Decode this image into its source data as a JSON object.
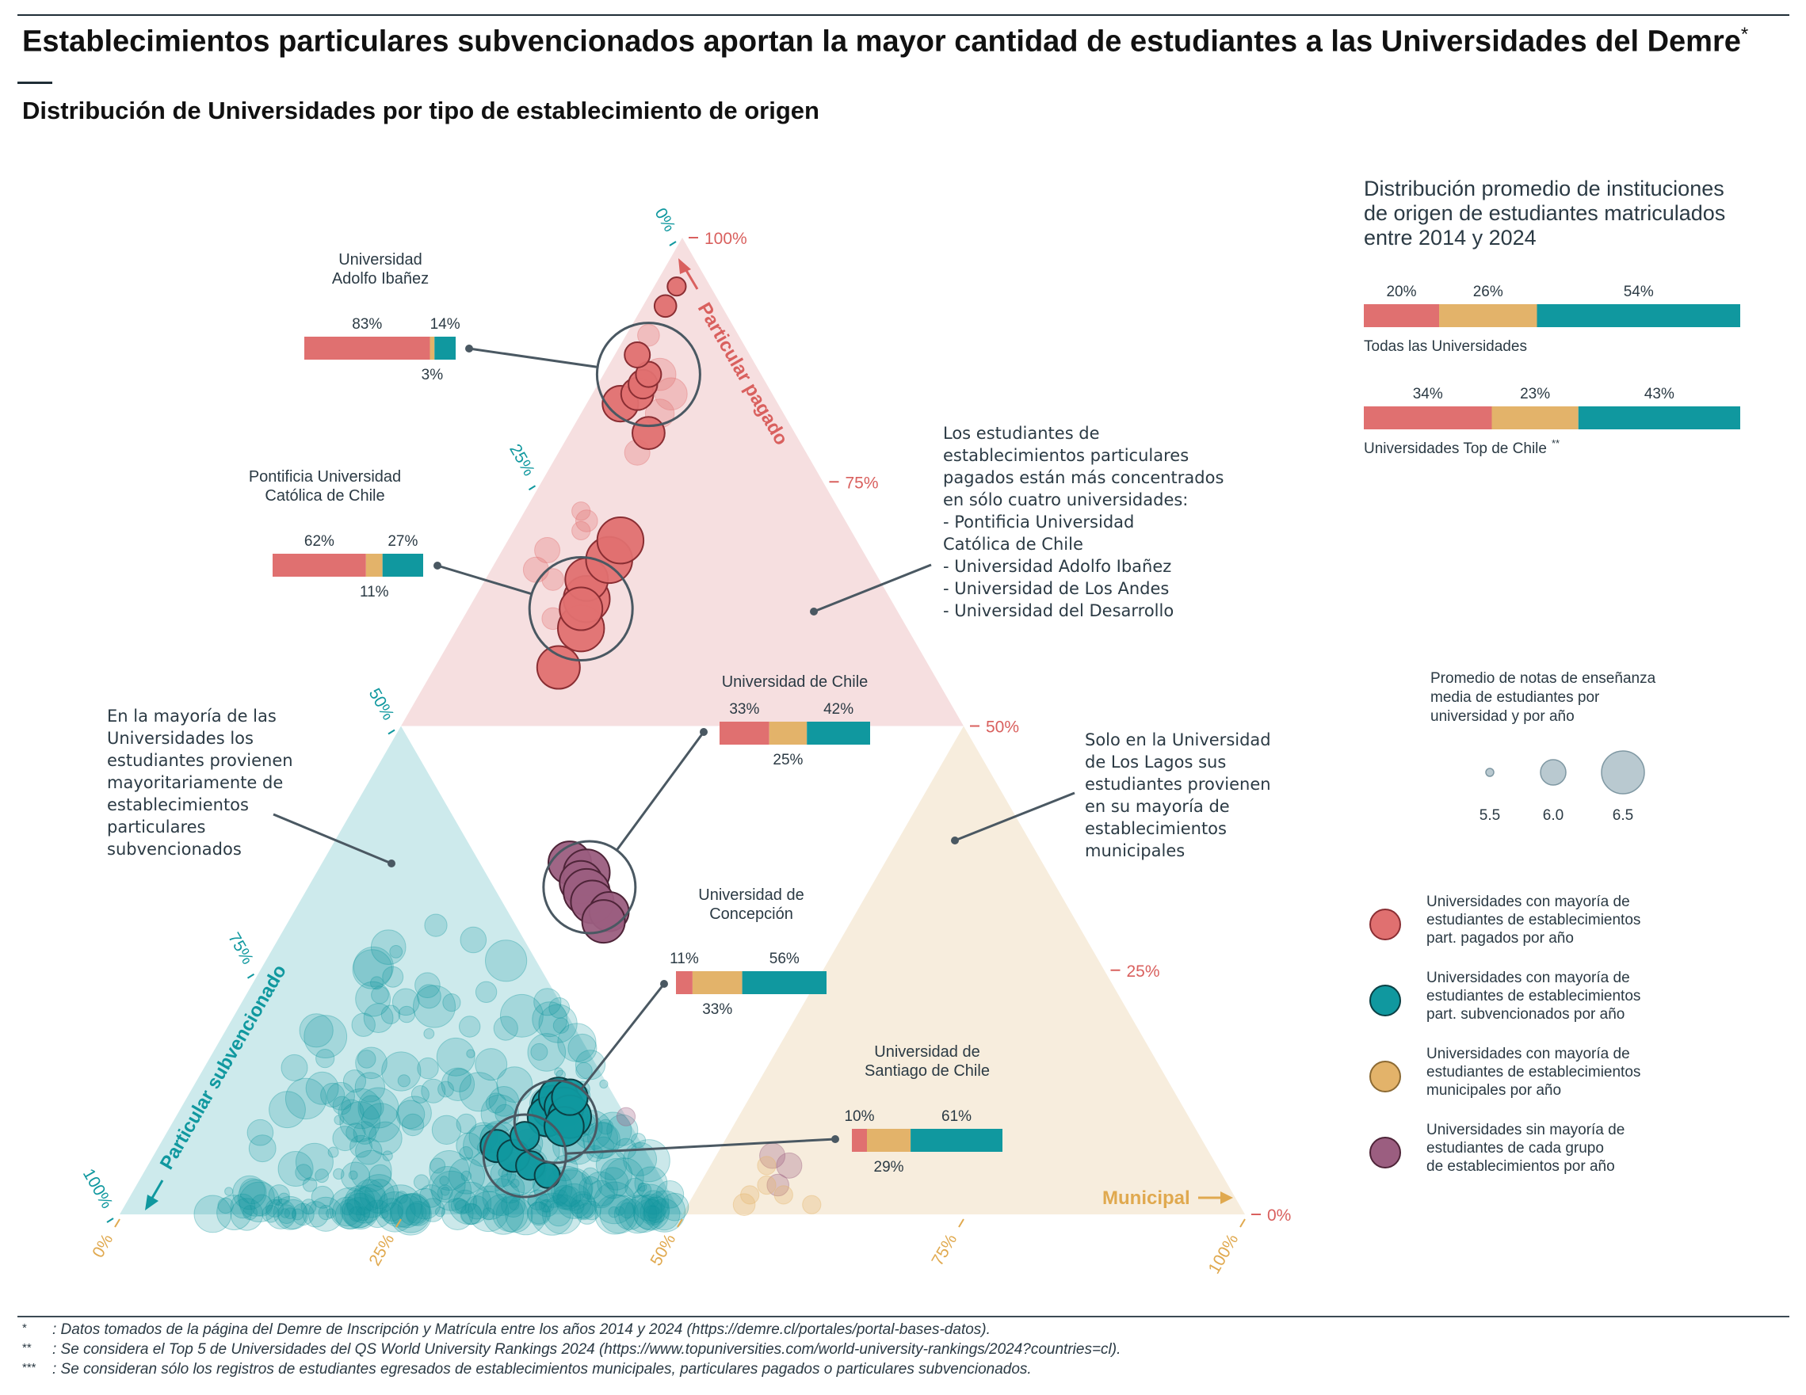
{
  "title": "Establecimientos particulares subvencionados aportan la mayor cantidad de estudiantes a las Universidades del Demre",
  "title_mark": "*",
  "subtitle": "Distribución de Universidades por tipo de establecimiento de origen",
  "colors": {
    "pagado": "#e07070",
    "subvencionado": "#10989f",
    "municipal": "#e3b36a",
    "sin_mayoria": "#9b5e80",
    "region_pagado": "#f6dfe0",
    "region_subvencionado": "#cdeaec",
    "region_municipal": "#f7eddd",
    "axis_pagado": "#d9605e",
    "axis_subvencionado": "#10989f",
    "axis_municipal": "#e0a94f",
    "text": "#2b3a44"
  },
  "axes": {
    "pagado": {
      "title": "Particular pagado",
      "ticks": [
        "100%",
        "75%",
        "50%",
        "25%",
        "0%"
      ]
    },
    "subvencionado": {
      "title": "Particular subvencionado",
      "ticks": [
        "0%",
        "25%",
        "50%",
        "75%",
        "100%"
      ]
    },
    "municipal": {
      "title": "Municipal",
      "ticks": [
        "0%",
        "25%",
        "50%",
        "75%",
        "100%"
      ]
    }
  },
  "annotations": [
    {
      "id": "a1",
      "lines": [
        "Los estudiantes de",
        "establecimientos particulares",
        "pagados están más concentrados",
        "en sólo cuatro universidades:",
        " - Pontificia Universidad",
        "   Católica de Chile",
        " - Universidad Adolfo Ibañez",
        " - Universidad de Los Andes",
        " - Universidad del Desarrollo"
      ]
    },
    {
      "id": "a2",
      "lines": [
        "En la mayoría de las",
        "Universidades los",
        "estudiantes provienen",
        "mayoritariamente de",
        "establecimientos",
        "particulares",
        "subvencionados"
      ]
    },
    {
      "id": "a3",
      "lines": [
        "Solo en la Universidad",
        "de Los Lagos sus",
        "estudiantes provienen",
        "en su mayoría de",
        "establecimientos",
        "municipales"
      ]
    }
  ],
  "callouts": [
    {
      "name": [
        "Universidad",
        "Adolfo Ibañez"
      ],
      "pagado": 83,
      "municipal": 3,
      "subvencionado": 14,
      "labels": [
        "83%",
        "14%",
        "3%"
      ]
    },
    {
      "name": [
        "Pontificia Universidad",
        "Católica de Chile"
      ],
      "pagado": 62,
      "municipal": 11,
      "subvencionado": 27,
      "labels": [
        "62%",
        "27%",
        "11%"
      ]
    },
    {
      "name": [
        "Universidad de Chile"
      ],
      "pagado": 33,
      "municipal": 25,
      "subvencionado": 42,
      "labels": [
        "33%",
        "42%",
        "25%"
      ]
    },
    {
      "name": [
        "Universidad de",
        "Concepción"
      ],
      "pagado": 11,
      "municipal": 33,
      "subvencionado": 56,
      "labels": [
        "11%",
        "56%",
        "33%"
      ]
    },
    {
      "name": [
        "Universidad de",
        "Santiago de Chile"
      ],
      "pagado": 10,
      "municipal": 29,
      "subvencionado": 61,
      "labels": [
        "10%",
        "61%",
        "29%"
      ]
    }
  ],
  "summary": {
    "title": [
      "Distribución promedio de instituciones",
      "de origen de estudiantes matriculados",
      "entre 2014 y 2024"
    ],
    "bars": [
      {
        "label": "Todas las Universidades",
        "mark": "",
        "pagado": 20,
        "municipal": 26,
        "subvencionado": 54,
        "labels": [
          "20%",
          "26%",
          "54%"
        ]
      },
      {
        "label": "Universidades Top de Chile",
        "mark": "**",
        "pagado": 34,
        "municipal": 23,
        "subvencionado": 43,
        "labels": [
          "34%",
          "23%",
          "43%"
        ]
      }
    ]
  },
  "size_legend": {
    "title": [
      "Promedio de notas de enseñanza",
      "media de estudiantes por",
      "universidad y por año"
    ],
    "values": [
      5.5,
      6.0,
      6.5
    ],
    "labels": [
      "5.5",
      "6.0",
      "6.5"
    ]
  },
  "color_legend": [
    {
      "key": "pagado",
      "lines": [
        "Universidades con mayoría de",
        "estudiantes de establecimientos",
        "part. pagados por año"
      ]
    },
    {
      "key": "subvencionado",
      "lines": [
        "Universidades con mayoría de",
        "estudiantes de establecimientos",
        "part. subvencionados por año"
      ]
    },
    {
      "key": "municipal",
      "lines": [
        "Universidades con mayoría de",
        "estudiantes de establecimientos",
        "municipales por año"
      ]
    },
    {
      "key": "sin_mayoria",
      "lines": [
        "Universidades sin mayoría de",
        "estudiantes de cada grupo",
        "de establecimientos por año"
      ]
    }
  ],
  "footnotes": [
    {
      "mark": "*",
      "text": ": Datos tomados de la página del Demre de Inscripción y Matrícula entre los años 2014 y 2024 (https://demre.cl/portales/portal-bases-datos)."
    },
    {
      "mark": "**",
      "text": ": Se considera el Top 5 de Universidades del QS World University Rankings 2024 (https://www.topuniversities.com/world-university-rankings/2024?countries=cl)."
    },
    {
      "mark": "***",
      "text": ": Se consideran sólo los registros de estudiantes egresados de establecimientos municipales, particulares pagados o particulares subvencionados."
    }
  ],
  "chart_data": {
    "type": "scatter",
    "subtype": "ternary",
    "components": [
      "pagado",
      "subvencionado",
      "municipal"
    ],
    "highlight_points": [
      {
        "group": "pagado",
        "pagado": 0.8,
        "subvencionado": 0.13,
        "municipal": 0.07,
        "size": 6.2
      },
      {
        "group": "pagado",
        "pagado": 0.83,
        "subvencionado": 0.14,
        "municipal": 0.03,
        "size": 6.3
      },
      {
        "group": "pagado",
        "pagado": 0.84,
        "subvencionado": 0.12,
        "municipal": 0.04,
        "size": 6.2
      },
      {
        "group": "pagado",
        "pagado": 0.85,
        "subvencionado": 0.11,
        "municipal": 0.04,
        "size": 6.1
      },
      {
        "group": "pagado",
        "pagado": 0.86,
        "subvencionado": 0.1,
        "municipal": 0.04,
        "size": 6.0
      },
      {
        "group": "pagado",
        "pagado": 0.88,
        "subvencionado": 0.1,
        "municipal": 0.02,
        "size": 6.0
      },
      {
        "group": "pagado",
        "pagado": 0.93,
        "subvencionado": 0.05,
        "municipal": 0.02,
        "size": 5.9
      },
      {
        "group": "pagado",
        "pagado": 0.95,
        "subvencionado": 0.03,
        "municipal": 0.02,
        "size": 5.8
      },
      {
        "group": "pagado",
        "pagado": 0.56,
        "subvencionado": 0.33,
        "municipal": 0.11,
        "size": 6.5
      },
      {
        "group": "pagado",
        "pagado": 0.6,
        "subvencionado": 0.29,
        "municipal": 0.11,
        "size": 6.6
      },
      {
        "group": "pagado",
        "pagado": 0.63,
        "subvencionado": 0.27,
        "municipal": 0.1,
        "size": 6.6
      },
      {
        "group": "pagado",
        "pagado": 0.65,
        "subvencionado": 0.26,
        "municipal": 0.09,
        "size": 6.5
      },
      {
        "group": "pagado",
        "pagado": 0.67,
        "subvencionado": 0.23,
        "municipal": 0.1,
        "size": 6.6
      },
      {
        "group": "pagado",
        "pagado": 0.69,
        "subvencionado": 0.21,
        "municipal": 0.1,
        "size": 6.6
      },
      {
        "group": "pagado",
        "pagado": 0.62,
        "subvencionado": 0.28,
        "municipal": 0.1,
        "size": 6.5
      },
      {
        "group": "sin_mayoria",
        "pagado": 0.36,
        "subvencionado": 0.42,
        "municipal": 0.22,
        "size": 6.5
      },
      {
        "group": "sin_mayoria",
        "pagado": 0.35,
        "subvencionado": 0.41,
        "municipal": 0.24,
        "size": 6.6
      },
      {
        "group": "sin_mayoria",
        "pagado": 0.34,
        "subvencionado": 0.42,
        "municipal": 0.24,
        "size": 6.5
      },
      {
        "group": "sin_mayoria",
        "pagado": 0.33,
        "subvencionado": 0.42,
        "municipal": 0.25,
        "size": 6.6
      },
      {
        "group": "sin_mayoria",
        "pagado": 0.32,
        "subvencionado": 0.42,
        "municipal": 0.26,
        "size": 6.5
      },
      {
        "group": "sin_mayoria",
        "pagado": 0.31,
        "subvencionado": 0.41,
        "municipal": 0.28,
        "size": 6.4
      },
      {
        "group": "sin_mayoria",
        "pagado": 0.3,
        "subvencionado": 0.42,
        "municipal": 0.28,
        "size": 6.5
      },
      {
        "group": "subvencionado",
        "pagado": 0.11,
        "subvencionado": 0.56,
        "municipal": 0.33,
        "size": 6.5
      },
      {
        "group": "subvencionado",
        "pagado": 0.1,
        "subvencionado": 0.57,
        "municipal": 0.33,
        "size": 6.4
      },
      {
        "group": "subvencionado",
        "pagado": 0.12,
        "subvencionado": 0.55,
        "municipal": 0.33,
        "size": 6.4
      },
      {
        "group": "subvencionado",
        "pagado": 0.11,
        "subvencionado": 0.55,
        "municipal": 0.34,
        "size": 6.4
      },
      {
        "group": "subvencionado",
        "pagado": 0.1,
        "subvencionado": 0.55,
        "municipal": 0.35,
        "size": 6.5
      },
      {
        "group": "subvencionado",
        "pagado": 0.09,
        "subvencionado": 0.56,
        "municipal": 0.35,
        "size": 6.4
      },
      {
        "group": "subvencionado",
        "pagado": 0.12,
        "subvencionado": 0.54,
        "municipal": 0.34,
        "size": 6.3
      },
      {
        "group": "subvencionado",
        "pagado": 0.07,
        "subvencionado": 0.63,
        "municipal": 0.3,
        "size": 6.2
      },
      {
        "group": "subvencionado",
        "pagado": 0.06,
        "subvencionado": 0.62,
        "municipal": 0.32,
        "size": 6.2
      },
      {
        "group": "subvencionado",
        "pagado": 0.05,
        "subvencionado": 0.61,
        "municipal": 0.34,
        "size": 6.1
      },
      {
        "group": "subvencionado",
        "pagado": 0.08,
        "subvencionado": 0.6,
        "municipal": 0.32,
        "size": 6.1
      },
      {
        "group": "subvencionado",
        "pagado": 0.04,
        "subvencionado": 0.6,
        "municipal": 0.36,
        "size": 6.0
      }
    ],
    "faded_points": [
      {
        "group": "pagado",
        "pagado": 0.9,
        "subvencionado": 0.08,
        "municipal": 0.02,
        "size": 5.9
      },
      {
        "group": "pagado",
        "pagado": 0.86,
        "subvencionado": 0.09,
        "municipal": 0.05,
        "size": 6.2
      },
      {
        "group": "pagado",
        "pagado": 0.84,
        "subvencionado": 0.09,
        "municipal": 0.07,
        "size": 6.2
      },
      {
        "group": "pagado",
        "pagado": 0.82,
        "subvencionado": 0.11,
        "municipal": 0.07,
        "size": 6.1
      },
      {
        "group": "pagado",
        "pagado": 0.78,
        "subvencionado": 0.15,
        "municipal": 0.07,
        "size": 6.0
      },
      {
        "group": "pagado",
        "pagado": 0.72,
        "subvencionado": 0.23,
        "municipal": 0.05,
        "size": 5.8
      },
      {
        "group": "pagado",
        "pagado": 0.71,
        "subvencionado": 0.23,
        "municipal": 0.06,
        "size": 5.9
      },
      {
        "group": "pagado",
        "pagado": 0.7,
        "subvencionado": 0.24,
        "municipal": 0.06,
        "size": 5.8
      },
      {
        "group": "pagado",
        "pagado": 0.68,
        "subvencionado": 0.28,
        "municipal": 0.04,
        "size": 6.0
      },
      {
        "group": "pagado",
        "pagado": 0.66,
        "subvencionado": 0.3,
        "municipal": 0.04,
        "size": 6.0
      },
      {
        "group": "pagado",
        "pagado": 0.65,
        "subvencionado": 0.29,
        "municipal": 0.06,
        "size": 5.9
      },
      {
        "group": "pagado",
        "pagado": 0.61,
        "subvencionado": 0.31,
        "municipal": 0.08,
        "size": 5.9
      },
      {
        "group": "sin_mayoria",
        "pagado": 0.06,
        "subvencionado": 0.39,
        "municipal": 0.55,
        "size": 6.0
      },
      {
        "group": "sin_mayoria",
        "pagado": 0.05,
        "subvencionado": 0.38,
        "municipal": 0.57,
        "size": 6.0
      },
      {
        "group": "sin_mayoria",
        "pagado": 0.03,
        "subvencionado": 0.4,
        "municipal": 0.57,
        "size": 5.9
      },
      {
        "group": "sin_mayoria",
        "pagado": 0.1,
        "subvencionado": 0.5,
        "municipal": 0.4,
        "size": 5.8
      },
      {
        "group": "municipal",
        "pagado": 0.05,
        "subvencionado": 0.4,
        "municipal": 0.55,
        "size": 5.8
      },
      {
        "group": "municipal",
        "pagado": 0.03,
        "subvencionado": 0.41,
        "municipal": 0.56,
        "size": 5.8
      },
      {
        "group": "municipal",
        "pagado": 0.02,
        "subvencionado": 0.43,
        "municipal": 0.55,
        "size": 5.8
      },
      {
        "group": "municipal",
        "pagado": 0.01,
        "subvencionado": 0.38,
        "municipal": 0.61,
        "size": 5.8
      },
      {
        "group": "municipal",
        "pagado": 0.01,
        "subvencionado": 0.44,
        "municipal": 0.55,
        "size": 5.9
      },
      {
        "group": "municipal",
        "pagado": 0.02,
        "subvencionado": 0.4,
        "municipal": 0.58,
        "size": 5.8
      }
    ],
    "scatter_cloud": {
      "group": "subvencionado",
      "pagado_range": [
        0.0,
        0.5
      ],
      "subvencionado_range": [
        0.5,
        0.98
      ],
      "municipal_range": [
        0.02,
        0.5
      ],
      "size_range": [
        5.5,
        6.5
      ],
      "count": 420
    }
  }
}
